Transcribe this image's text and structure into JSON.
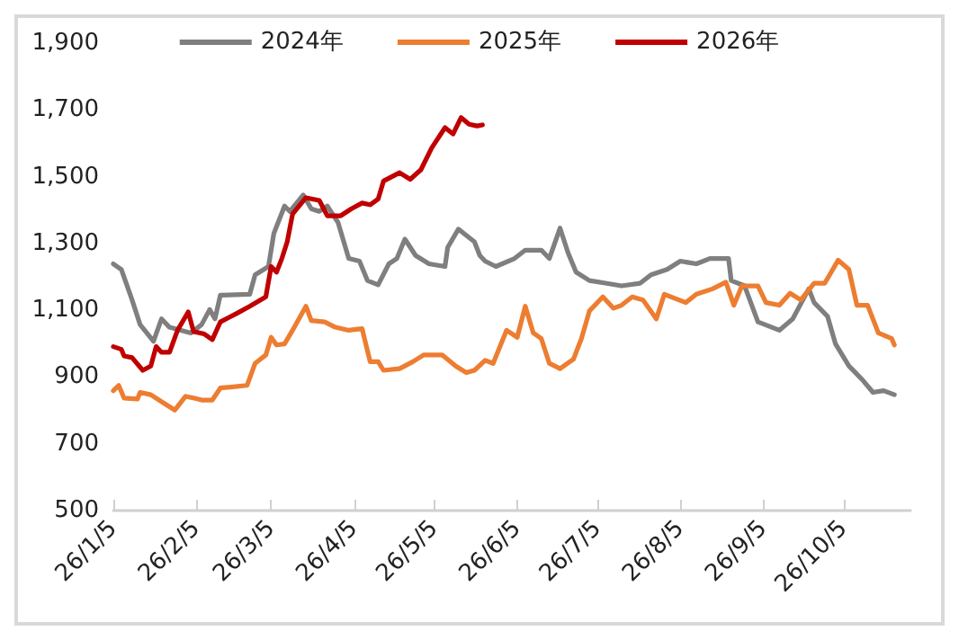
{
  "chart_data": {
    "type": "line",
    "legend": "top",
    "grid": false,
    "marker": "none",
    "line_style": "solid",
    "xlim": [
      "2026-01-05",
      "2026-10-30"
    ],
    "xticks": [
      {
        "value": "2026-01-05",
        "label": "26/1/5"
      },
      {
        "value": "2026-02-05",
        "label": "26/2/5"
      },
      {
        "value": "2026-03-05",
        "label": "26/3/5"
      },
      {
        "value": "2026-04-05",
        "label": "26/4/5"
      },
      {
        "value": "2026-05-05",
        "label": "26/5/5"
      },
      {
        "value": "2026-06-05",
        "label": "26/6/5"
      },
      {
        "value": "2026-07-05",
        "label": "26/7/5"
      },
      {
        "value": "2026-08-05",
        "label": "26/8/5"
      },
      {
        "value": "2026-09-05",
        "label": "26/9/5"
      },
      {
        "value": "2026-10-05",
        "label": "26/10/5"
      }
    ],
    "ylim": [
      500,
      1900
    ],
    "yticks": [
      {
        "value": 500,
        "label": "500"
      },
      {
        "value": 700,
        "label": "700"
      },
      {
        "value": 900,
        "label": "900"
      },
      {
        "value": 1100,
        "label": "1,100"
      },
      {
        "value": 1300,
        "label": "1,300"
      },
      {
        "value": 1500,
        "label": "1,500"
      },
      {
        "value": 1700,
        "label": "1,700"
      },
      {
        "value": 1900,
        "label": "1,900"
      }
    ],
    "series": [
      {
        "name": "2024年",
        "color": "#7f7f7f",
        "x": [
          "2026-01-05",
          "2026-01-08",
          "2026-01-12",
          "2026-01-15",
          "2026-01-20",
          "2026-01-23",
          "2026-01-26",
          "2026-02-03",
          "2026-02-07",
          "2026-02-10",
          "2026-02-12",
          "2026-02-14",
          "2026-02-25",
          "2026-02-27",
          "2026-03-04",
          "2026-03-06",
          "2026-03-10",
          "2026-03-12",
          "2026-03-17",
          "2026-03-20",
          "2026-03-23",
          "2026-03-26",
          "2026-03-30",
          "2026-04-03",
          "2026-04-07",
          "2026-04-10",
          "2026-04-14",
          "2026-04-18",
          "2026-04-21",
          "2026-04-24",
          "2026-04-28",
          "2026-05-03",
          "2026-05-09",
          "2026-05-10",
          "2026-05-14",
          "2026-05-20",
          "2026-05-22",
          "2026-05-24",
          "2026-05-28",
          "2026-06-04",
          "2026-06-08",
          "2026-06-14",
          "2026-06-17",
          "2026-06-21",
          "2026-06-24",
          "2026-06-27",
          "2026-07-02",
          "2026-07-08",
          "2026-07-14",
          "2026-07-21",
          "2026-07-25",
          "2026-07-31",
          "2026-08-05",
          "2026-08-11",
          "2026-08-16",
          "2026-08-23",
          "2026-08-24",
          "2026-08-29",
          "2026-09-03",
          "2026-09-11",
          "2026-09-16",
          "2026-09-22",
          "2026-09-24",
          "2026-09-29",
          "2026-10-02",
          "2026-10-07",
          "2026-10-12",
          "2026-10-16",
          "2026-10-20",
          "2026-10-24"
        ],
        "values": [
          1239,
          1222,
          1131,
          1057,
          1007,
          1074,
          1049,
          1032,
          1057,
          1102,
          1074,
          1145,
          1148,
          1206,
          1231,
          1330,
          1412,
          1396,
          1445,
          1404,
          1396,
          1412,
          1363,
          1255,
          1247,
          1189,
          1176,
          1239,
          1255,
          1313,
          1264,
          1239,
          1231,
          1288,
          1343,
          1305,
          1264,
          1247,
          1231,
          1255,
          1280,
          1280,
          1255,
          1346,
          1272,
          1214,
          1189,
          1181,
          1173,
          1181,
          1206,
          1222,
          1247,
          1239,
          1255,
          1255,
          1189,
          1173,
          1065,
          1040,
          1074,
          1164,
          1123,
          1082,
          999,
          933,
          892,
          854,
          859,
          847
        ]
      },
      {
        "name": "2025年",
        "color": "#ed7d31",
        "x": [
          "2026-01-05",
          "2026-01-07",
          "2026-01-09",
          "2026-01-14",
          "2026-01-15",
          "2026-01-19",
          "2026-01-24",
          "2026-01-28",
          "2026-02-01",
          "2026-02-04",
          "2026-02-07",
          "2026-02-11",
          "2026-02-14",
          "2026-02-24",
          "2026-02-27",
          "2026-03-03",
          "2026-03-05",
          "2026-03-07",
          "2026-03-10",
          "2026-03-13",
          "2026-03-18",
          "2026-03-20",
          "2026-03-25",
          "2026-03-29",
          "2026-04-03",
          "2026-04-08",
          "2026-04-11",
          "2026-04-14",
          "2026-04-16",
          "2026-04-22",
          "2026-04-27",
          "2026-05-01",
          "2026-05-08",
          "2026-05-13",
          "2026-05-17",
          "2026-05-20",
          "2026-05-24",
          "2026-05-27",
          "2026-06-01",
          "2026-06-05",
          "2026-06-08",
          "2026-06-11",
          "2026-06-14",
          "2026-06-17",
          "2026-06-21",
          "2026-06-26",
          "2026-06-29",
          "2026-07-02",
          "2026-07-07",
          "2026-07-11",
          "2026-07-14",
          "2026-07-18",
          "2026-07-22",
          "2026-07-27",
          "2026-07-30",
          "2026-08-07",
          "2026-08-11",
          "2026-08-17",
          "2026-08-22",
          "2026-08-25",
          "2026-08-28",
          "2026-09-03",
          "2026-09-06",
          "2026-09-11",
          "2026-09-15",
          "2026-09-19",
          "2026-09-24",
          "2026-09-28",
          "2026-10-03",
          "2026-10-07",
          "2026-10-10",
          "2026-10-14",
          "2026-10-18",
          "2026-10-23",
          "2026-10-24"
        ],
        "values": [
          859,
          875,
          837,
          834,
          854,
          847,
          821,
          801,
          842,
          837,
          831,
          831,
          867,
          875,
          941,
          966,
          1019,
          996,
          999,
          1040,
          1112,
          1069,
          1065,
          1049,
          1040,
          1045,
          946,
          946,
          920,
          925,
          946,
          966,
          966,
          933,
          913,
          920,
          950,
          941,
          1040,
          1019,
          1112,
          1032,
          1015,
          941,
          925,
          953,
          1015,
          1098,
          1140,
          1106,
          1115,
          1140,
          1131,
          1074,
          1148,
          1123,
          1148,
          1164,
          1184,
          1115,
          1173,
          1173,
          1123,
          1115,
          1151,
          1131,
          1181,
          1181,
          1250,
          1222,
          1115,
          1115,
          1032,
          1015,
          996
        ]
      },
      {
        "name": "2026年",
        "color": "#c00000",
        "x": [
          "2026-01-05",
          "2026-01-08",
          "2026-01-09",
          "2026-01-12",
          "2026-01-16",
          "2026-01-19",
          "2026-01-21",
          "2026-01-23",
          "2026-01-26",
          "2026-01-29",
          "2026-02-02",
          "2026-02-04",
          "2026-02-08",
          "2026-02-11",
          "2026-02-14",
          "2026-02-20",
          "2026-02-25",
          "2026-03-03",
          "2026-03-05",
          "2026-03-07",
          "2026-03-09",
          "2026-03-11",
          "2026-03-13",
          "2026-03-18",
          "2026-03-23",
          "2026-03-26",
          "2026-03-31",
          "2026-04-04",
          "2026-04-08",
          "2026-04-11",
          "2026-04-14",
          "2026-04-16",
          "2026-04-22",
          "2026-04-26",
          "2026-04-30",
          "2026-05-04",
          "2026-05-09",
          "2026-05-12",
          "2026-05-15",
          "2026-05-18",
          "2026-05-21",
          "2026-05-23"
        ],
        "values": [
          991,
          983,
          963,
          958,
          920,
          933,
          991,
          974,
          974,
          1040,
          1095,
          1036,
          1029,
          1012,
          1065,
          1090,
          1112,
          1140,
          1231,
          1214,
          1255,
          1305,
          1388,
          1437,
          1429,
          1383,
          1383,
          1404,
          1421,
          1416,
          1433,
          1487,
          1512,
          1492,
          1521,
          1586,
          1647,
          1628,
          1677,
          1657,
          1652,
          1655
        ]
      }
    ]
  }
}
